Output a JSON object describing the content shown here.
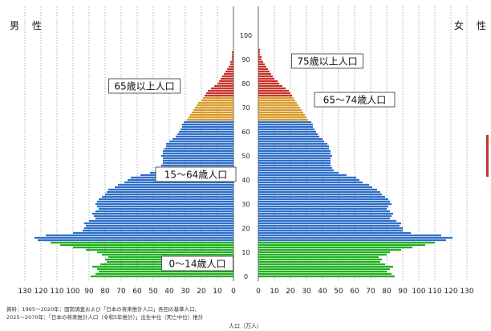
{
  "chart_data": {
    "type": "bar",
    "subtype": "population-pyramid",
    "gender_labels": {
      "male": "男 性",
      "female": "女 性"
    },
    "x_unit_label": "人口（万人）",
    "x_ticks": [
      130,
      120,
      110,
      100,
      90,
      80,
      70,
      60,
      50,
      40,
      30,
      20,
      10,
      0
    ],
    "y_ticks": [
      0,
      10,
      20,
      30,
      40,
      50,
      60,
      70,
      80,
      90,
      100
    ],
    "xlim": [
      0,
      130
    ],
    "ylim": [
      0,
      100
    ],
    "grid": "vertical dotted",
    "age_groups": [
      {
        "label": "0～14歳人口",
        "range": [
          0,
          14
        ],
        "color": "#22b022"
      },
      {
        "label": "15～64歳人口",
        "range": [
          15,
          64
        ],
        "color": "#2f6fc9"
      },
      {
        "label": "65～74歳人口",
        "range": [
          65,
          74
        ],
        "color": "#d99a2a"
      },
      {
        "label": "75歳以上人口",
        "range": [
          75,
          100
        ],
        "color": "#c8342a"
      }
    ],
    "group_labels_left": [
      "0～14歳人口",
      "15～64歳人口",
      "65歳以上人口"
    ],
    "group_labels_right": [
      "65～74歳人口",
      "75歳以上人口"
    ],
    "ages": [
      0,
      1,
      2,
      3,
      4,
      5,
      6,
      7,
      8,
      9,
      10,
      11,
      12,
      13,
      14,
      15,
      16,
      17,
      18,
      19,
      20,
      21,
      22,
      23,
      24,
      25,
      26,
      27,
      28,
      29,
      30,
      31,
      32,
      33,
      34,
      35,
      36,
      37,
      38,
      39,
      40,
      41,
      42,
      43,
      44,
      45,
      46,
      47,
      48,
      49,
      50,
      51,
      52,
      53,
      54,
      55,
      56,
      57,
      58,
      59,
      60,
      61,
      62,
      63,
      64,
      65,
      66,
      67,
      68,
      69,
      70,
      71,
      72,
      73,
      74,
      75,
      76,
      77,
      78,
      79,
      80,
      81,
      82,
      83,
      84,
      85,
      86,
      87,
      88,
      89,
      90,
      91,
      92,
      93,
      94,
      95,
      96,
      97,
      98,
      99,
      100
    ],
    "male": [
      89,
      86,
      84,
      85,
      88,
      83,
      79,
      80,
      78,
      82,
      85,
      92,
      100,
      108,
      114,
      122,
      124,
      117,
      100,
      94,
      93,
      92,
      93,
      90,
      86,
      87,
      88,
      86,
      84,
      85,
      86,
      85,
      84,
      82,
      80,
      79,
      78,
      74,
      72,
      68,
      66,
      64,
      58,
      52,
      48,
      46,
      45,
      44,
      44,
      44,
      45,
      44,
      44,
      43,
      42,
      42,
      40,
      38,
      36,
      35,
      34,
      33,
      32,
      32,
      31,
      29,
      28,
      27,
      26,
      25,
      24,
      23,
      22,
      20,
      19,
      18,
      17,
      16,
      14,
      12,
      10,
      9,
      8,
      7,
      6,
      5,
      4,
      3,
      2,
      2,
      1,
      1,
      1,
      1,
      0,
      0,
      0,
      0,
      0,
      0,
      0
    ],
    "female": [
      85,
      83,
      80,
      82,
      84,
      79,
      76,
      77,
      75,
      80,
      82,
      89,
      96,
      104,
      110,
      117,
      121,
      114,
      95,
      90,
      90,
      88,
      89,
      86,
      82,
      83,
      84,
      82,
      80,
      81,
      83,
      82,
      81,
      79,
      77,
      76,
      74,
      71,
      69,
      65,
      63,
      61,
      55,
      50,
      47,
      46,
      45,
      45,
      45,
      45,
      46,
      45,
      45,
      44,
      44,
      43,
      41,
      40,
      38,
      37,
      36,
      35,
      34,
      34,
      33,
      31,
      30,
      29,
      28,
      27,
      26,
      25,
      24,
      23,
      22,
      21,
      20,
      19,
      17,
      15,
      13,
      12,
      10,
      9,
      8,
      7,
      6,
      5,
      4,
      3,
      2,
      2,
      1,
      1,
      1,
      0,
      0,
      0,
      0,
      0,
      0
    ]
  },
  "footnote_lines": [
    "資料：1965～2020年：国勢調査および「日本の将来推計人口」各回の基準人口、",
    "2025～2070年：「日本の将来推計人口（令和5年推計）」出生中位（死亡中位）推計"
  ]
}
